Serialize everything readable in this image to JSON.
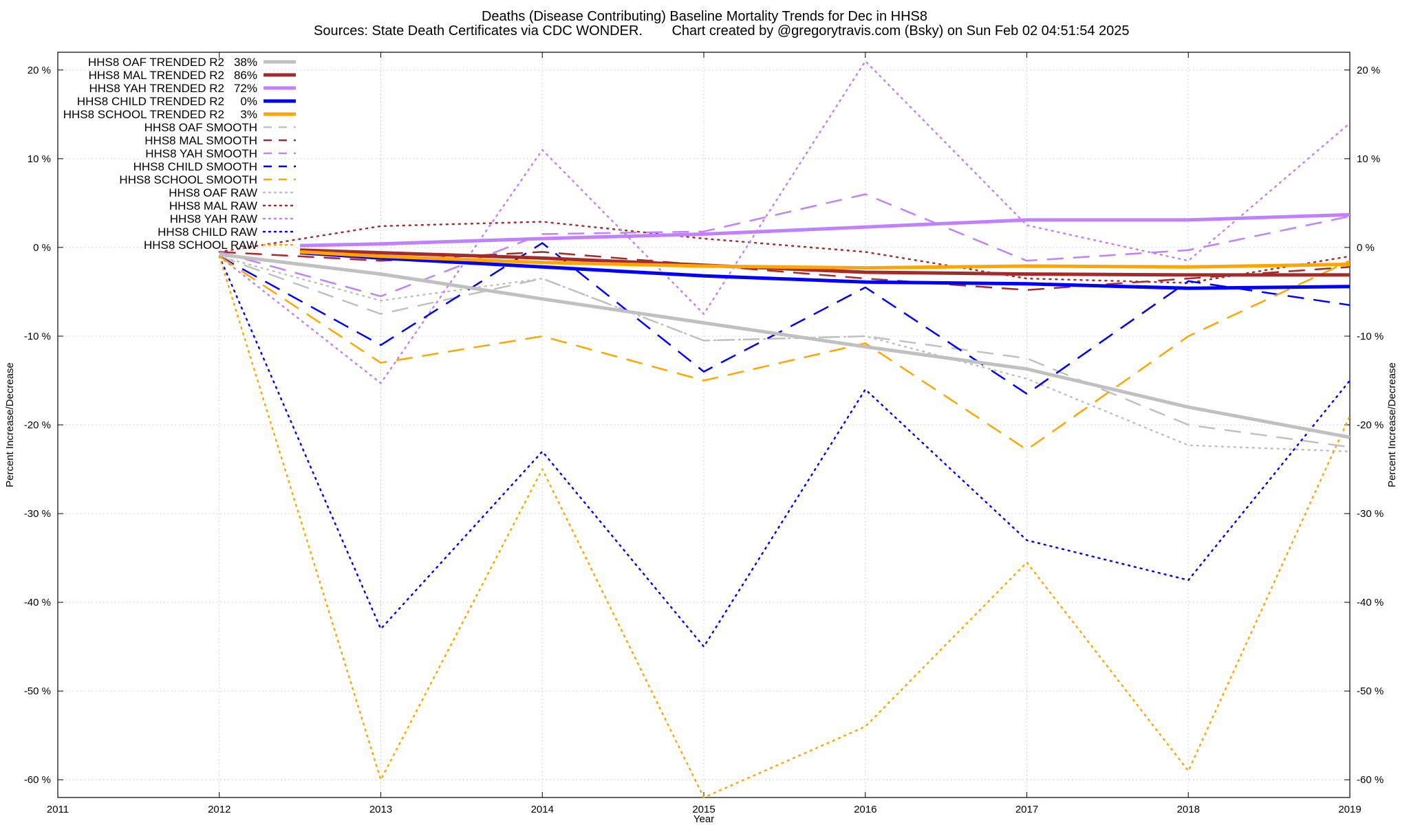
{
  "chart_data": {
    "type": "line",
    "title": "Deaths (Disease Contributing)  Baseline Mortality Trends for Dec in HHS8",
    "subtitle_left": "Sources: State Death Certificates via CDC WONDER.",
    "subtitle_right": "Chart created by @gregorytravis.com (Bsky) on Sun Feb 02 04:51:54 2025",
    "xlabel": "Year",
    "ylabel": "Percent Increase/Decrease",
    "y2label": "Percent Increase/Decrease",
    "xlim": [
      2011,
      2019
    ],
    "ylim": [
      -62,
      22
    ],
    "x_ticks": [
      "2011",
      "2012",
      "2013",
      "2014",
      "2015",
      "2016",
      "2017",
      "2018",
      "2019"
    ],
    "y_ticks": [
      {
        "value": 20,
        "label": "20 %"
      },
      {
        "value": 10,
        "label": "10 %"
      },
      {
        "value": 0,
        "label": "0 %"
      },
      {
        "value": -10,
        "label": "-10 %"
      },
      {
        "value": -20,
        "label": "-20 %"
      },
      {
        "value": -30,
        "label": "-30 %"
      },
      {
        "value": -40,
        "label": "-40 %"
      },
      {
        "value": -50,
        "label": "-50 %"
      },
      {
        "value": -60,
        "label": "-60 %"
      }
    ],
    "grid": true,
    "legend_position": "top-left",
    "series": [
      {
        "name": "HHS8 OAF TRENDED R2",
        "r2": "38%",
        "style": "solid",
        "color": "#c0c0c0",
        "points": [
          [
            2012,
            -0.8
          ],
          [
            2013,
            -3.0
          ],
          [
            2014,
            -5.8
          ],
          [
            2015,
            -8.5
          ],
          [
            2016,
            -11.2
          ],
          [
            2017,
            -13.7
          ],
          [
            2018,
            -18.0
          ],
          [
            2019,
            -21.4
          ]
        ]
      },
      {
        "name": "HHS8 MAL TRENDED R2",
        "r2": "86%",
        "style": "solid",
        "color": "#a52a2a",
        "points": [
          [
            2012.5,
            -0.3
          ],
          [
            2013,
            -0.6
          ],
          [
            2014,
            -1.2
          ],
          [
            2015,
            -2.0
          ],
          [
            2016,
            -2.8
          ],
          [
            2017,
            -3.0
          ],
          [
            2018,
            -3.1
          ],
          [
            2019,
            -3.1
          ]
        ]
      },
      {
        "name": "HHS8 YAH TRENDED R2",
        "r2": "72%",
        "style": "solid",
        "color": "#c080ff",
        "points": [
          [
            2012.5,
            0.2
          ],
          [
            2013,
            0.4
          ],
          [
            2014,
            1.0
          ],
          [
            2015,
            1.5
          ],
          [
            2016,
            2.3
          ],
          [
            2017,
            3.1
          ],
          [
            2018,
            3.1
          ],
          [
            2019,
            3.7
          ]
        ]
      },
      {
        "name": "HHS8 CHILD TRENDED R2",
        "r2": "0%",
        "style": "solid",
        "color": "#0000ff",
        "points": [
          [
            2012.5,
            -0.6
          ],
          [
            2013,
            -1.2
          ],
          [
            2014,
            -2.2
          ],
          [
            2015,
            -3.2
          ],
          [
            2016,
            -3.9
          ],
          [
            2017,
            -4.1
          ],
          [
            2018,
            -4.6
          ],
          [
            2019,
            -4.4
          ]
        ]
      },
      {
        "name": "HHS8 SCHOOL TRENDED R2",
        "r2": "3%",
        "style": "solid",
        "color": "#ffa500",
        "points": [
          [
            2012.5,
            -0.5
          ],
          [
            2013,
            -1.0
          ],
          [
            2014,
            -1.7
          ],
          [
            2015,
            -2.1
          ],
          [
            2016,
            -2.3
          ],
          [
            2017,
            -2.1
          ],
          [
            2018,
            -2.2
          ],
          [
            2019,
            -1.9
          ]
        ]
      },
      {
        "name": "HHS8 OAF SMOOTH",
        "r2": "",
        "style": "dashed",
        "color": "#c0c0c0",
        "points": [
          [
            2012,
            -1.0
          ],
          [
            2013,
            -7.5
          ],
          [
            2014,
            -3.5
          ],
          [
            2015,
            -10.5
          ],
          [
            2016,
            -10.0
          ],
          [
            2017,
            -12.5
          ],
          [
            2018,
            -20.0
          ],
          [
            2019,
            -22.5
          ]
        ]
      },
      {
        "name": "HHS8 MAL SMOOTH",
        "r2": "",
        "style": "dashed",
        "color": "#a52a2a",
        "points": [
          [
            2012,
            -0.5
          ],
          [
            2013,
            -1.5
          ],
          [
            2014,
            -0.5
          ],
          [
            2015,
            -2.0
          ],
          [
            2016,
            -3.5
          ],
          [
            2017,
            -4.8
          ],
          [
            2018,
            -3.5
          ],
          [
            2019,
            -2.2
          ]
        ]
      },
      {
        "name": "HHS8 YAH SMOOTH",
        "r2": "",
        "style": "dashed",
        "color": "#c080ff",
        "points": [
          [
            2012,
            -0.5
          ],
          [
            2013,
            -5.5
          ],
          [
            2014,
            1.5
          ],
          [
            2015,
            1.8
          ],
          [
            2016,
            6.0
          ],
          [
            2017,
            -1.5
          ],
          [
            2018,
            -0.3
          ],
          [
            2019,
            3.5
          ]
        ]
      },
      {
        "name": "HHS8 CHILD SMOOTH",
        "r2": "",
        "style": "dashed",
        "color": "#0000ff",
        "points": [
          [
            2012,
            -1.0
          ],
          [
            2013,
            -11.0
          ],
          [
            2014,
            0.5
          ],
          [
            2015,
            -14.0
          ],
          [
            2016,
            -4.5
          ],
          [
            2017,
            -16.5
          ],
          [
            2018,
            -3.8
          ],
          [
            2019,
            -6.5
          ]
        ]
      },
      {
        "name": "HHS8 SCHOOL SMOOTH",
        "r2": "",
        "style": "dashed",
        "color": "#ffa500",
        "points": [
          [
            2012,
            -1.0
          ],
          [
            2013,
            -13.0
          ],
          [
            2014,
            -10.0
          ],
          [
            2015,
            -15.0
          ],
          [
            2016,
            -10.8
          ],
          [
            2017,
            -22.8
          ],
          [
            2018,
            -10.0
          ],
          [
            2019,
            -1.5
          ]
        ]
      },
      {
        "name": "HHS8 OAF RAW",
        "r2": "",
        "style": "dotted",
        "color": "#c0c0c0",
        "points": [
          [
            2012,
            -1.0
          ],
          [
            2013,
            -6.0
          ],
          [
            2014,
            -3.5
          ],
          [
            2015,
            -10.5
          ],
          [
            2016,
            -10.0
          ],
          [
            2017,
            -14.8
          ],
          [
            2018,
            -22.3
          ],
          [
            2019,
            -23.0
          ]
        ]
      },
      {
        "name": "HHS8 MAL RAW",
        "r2": "",
        "style": "dotted",
        "color": "#a52a2a",
        "points": [
          [
            2012,
            -0.5
          ],
          [
            2013,
            2.4
          ],
          [
            2014,
            2.9
          ],
          [
            2015,
            1.0
          ],
          [
            2016,
            -0.5
          ],
          [
            2017,
            -3.5
          ],
          [
            2018,
            -4.0
          ],
          [
            2019,
            -1.0
          ]
        ]
      },
      {
        "name": "HHS8 YAH RAW",
        "r2": "",
        "style": "dotted",
        "color": "#c080ff",
        "points": [
          [
            2012,
            -1.0
          ],
          [
            2013,
            -15.3
          ],
          [
            2014,
            11.0
          ],
          [
            2015,
            -7.5
          ],
          [
            2016,
            21.0
          ],
          [
            2017,
            2.5
          ],
          [
            2018,
            -1.5
          ],
          [
            2019,
            14.0
          ]
        ]
      },
      {
        "name": "HHS8 CHILD RAW",
        "r2": "",
        "style": "dotted",
        "color": "#0000ff",
        "points": [
          [
            2012,
            -1.0
          ],
          [
            2013,
            -43.0
          ],
          [
            2014,
            -23.0
          ],
          [
            2015,
            -45.0
          ],
          [
            2016,
            -16.0
          ],
          [
            2017,
            -33.0
          ],
          [
            2018,
            -37.5
          ],
          [
            2019,
            -15.0
          ]
        ]
      },
      {
        "name": "HHS8 SCHOOL RAW",
        "r2": "",
        "style": "dotted",
        "color": "#ffa500",
        "points": [
          [
            2012,
            -1.0
          ],
          [
            2013,
            -60.0
          ],
          [
            2014,
            -25.0
          ],
          [
            2015,
            -62.0
          ],
          [
            2016,
            -54.0
          ],
          [
            2017,
            -35.5
          ],
          [
            2018,
            -59.0
          ],
          [
            2019,
            -19.0
          ]
        ]
      }
    ]
  }
}
